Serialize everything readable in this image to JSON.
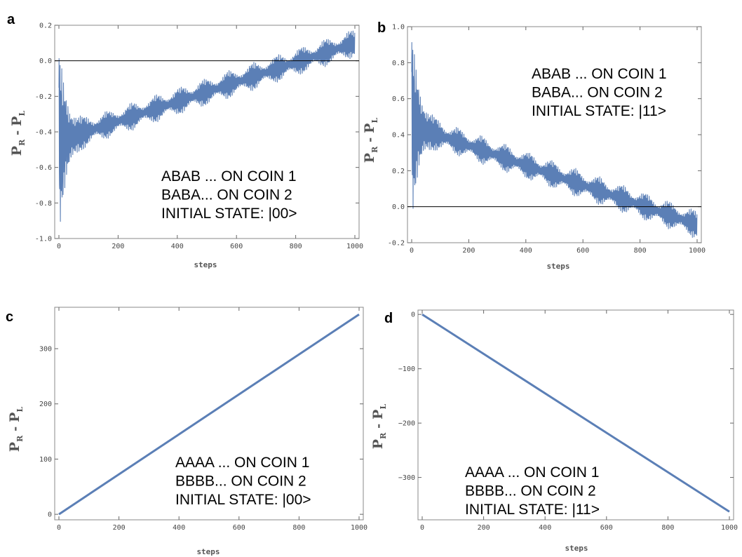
{
  "chart_data": [
    {
      "panel": "a",
      "type": "line",
      "xlabel": "steps",
      "ylabel": {
        "main1": "P",
        "sub1": "R",
        "dash": " - ",
        "main2": "P",
        "sub2": "L"
      },
      "xlim": [
        0,
        1000
      ],
      "ylim": [
        -1.0,
        0.2
      ],
      "xticks": [
        0,
        200,
        400,
        600,
        800,
        1000
      ],
      "yticks": [
        0.2,
        0.0,
        -0.2,
        -0.4,
        -0.6,
        -0.8,
        -1.0
      ],
      "ytick_labels": [
        "0.2",
        "0.0",
        "-0.2",
        "-0.4",
        "-0.6",
        "-0.8",
        "-1.0"
      ],
      "zero_line": true,
      "signal": {
        "kind": "oscillating",
        "start_mean": -0.45,
        "end_mean": 0.1,
        "initial_spike_amp": 0.48,
        "beat_amp": 0.08
      },
      "annotation": [
        "ABAB ... ON COIN 1",
        "BABA... ON COIN 2",
        "INITIAL STATE: |00>"
      ],
      "color": "#5b7fb6"
    },
    {
      "panel": "b",
      "type": "line",
      "xlabel": "steps",
      "ylabel": {
        "main1": "P",
        "sub1": "R",
        "dash": " - ",
        "main2": "P",
        "sub2": "L"
      },
      "xlim": [
        0,
        1000
      ],
      "ylim": [
        -0.2,
        1.0
      ],
      "xticks": [
        0,
        200,
        400,
        600,
        800,
        1000
      ],
      "yticks": [
        1.0,
        0.8,
        0.6,
        0.4,
        0.2,
        0.0,
        -0.2
      ],
      "ytick_labels": [
        "1.0",
        "0.8",
        "0.6",
        "0.4",
        "0.2",
        "0.0",
        "-0.2"
      ],
      "zero_line": true,
      "signal": {
        "kind": "oscillating",
        "start_mean": 0.45,
        "end_mean": -0.1,
        "initial_spike_amp": 0.48,
        "beat_amp": 0.08
      },
      "annotation": [
        "ABAB ... ON COIN 1",
        "BABA... ON COIN 2",
        "INITIAL STATE: |11>"
      ],
      "color": "#5b7fb6"
    },
    {
      "panel": "c",
      "type": "line",
      "xlabel": "steps",
      "ylabel": {
        "main1": "P",
        "sub1": "R",
        "dash": " - ",
        "main2": "P",
        "sub2": "L"
      },
      "xlim": [
        0,
        1000
      ],
      "ylim": [
        -10,
        375
      ],
      "xticks": [
        0,
        200,
        400,
        600,
        800,
        1000
      ],
      "yticks": [
        0,
        100,
        200,
        300
      ],
      "ytick_labels": [
        "0",
        "100",
        "200",
        "300"
      ],
      "zero_line": false,
      "signal": {
        "kind": "linear",
        "x": [
          0,
          1000
        ],
        "y": [
          0,
          362
        ]
      },
      "annotation": [
        "AAAA ... ON COIN 1",
        "BBBB... ON COIN 2",
        "INITIAL STATE: |00>"
      ],
      "color": "#5b7fb6"
    },
    {
      "panel": "d",
      "type": "line",
      "xlabel": "steps",
      "ylabel": {
        "main1": "P",
        "sub1": "R",
        "dash": " - ",
        "main2": "P",
        "sub2": "L"
      },
      "xlim": [
        0,
        1000
      ],
      "ylim": [
        -378,
        8
      ],
      "xticks": [
        0,
        200,
        400,
        600,
        800,
        1000
      ],
      "yticks": [
        0,
        -100,
        -200,
        -300
      ],
      "ytick_labels": [
        "0",
        "−100",
        "−200",
        "−300"
      ],
      "zero_line": false,
      "signal": {
        "kind": "linear",
        "x": [
          0,
          1000
        ],
        "y": [
          0,
          -363
        ]
      },
      "annotation": [
        "AAAA ... ON COIN 1",
        "BBBB... ON COIN 2",
        "INITIAL STATE: |11>"
      ],
      "color": "#5b7fb6"
    }
  ]
}
